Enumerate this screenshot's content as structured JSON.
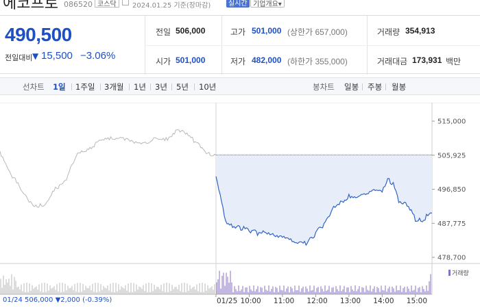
{
  "header": {
    "stock_name": "에코프로",
    "stock_code": "086520",
    "market": "코스닥",
    "date": "2024.01.25 기준(장마감)",
    "realtime_label": "실시간",
    "company_label": "기업개요▾"
  },
  "summary": {
    "current_price": "490,500",
    "change_label": "전일대비",
    "change_arrow": "▼",
    "change_amount": "15,500",
    "change_percent": "−3.06%",
    "prev_close_label": "전일",
    "prev_close": "506,000",
    "open_label": "시가",
    "open": "501,000",
    "high_label": "고가",
    "high": "501,000",
    "upper_limit_text": "(상한가 657,000)",
    "low_label": "저가",
    "low": "482,000",
    "lower_limit_text": "(하한가 355,000)",
    "volume_label": "거래량",
    "volume": "354,913",
    "value_label": "거래대금",
    "value": "173,931",
    "value_unit": "백만"
  },
  "tabs": {
    "line_label": "선차트",
    "line_periods": [
      "1일",
      "1주일",
      "3개월",
      "1년",
      "3년",
      "5년",
      "10년"
    ],
    "active_period": "1일",
    "candle_label": "봉차트",
    "candle_periods": [
      "일봉",
      "주봉",
      "월봉"
    ]
  },
  "colors": {
    "down_blue": "#1d50c4",
    "today_line": "#2f63c6",
    "today_fill": "#e7edf9",
    "prev_line": "#b8b8b8",
    "volume": "#8a6fc4"
  },
  "chart_data": {
    "type": "line",
    "y_ticks": [
      "515,000",
      "505,925",
      "496,850",
      "487,775",
      "478,700"
    ],
    "ylim": [
      478700,
      515000
    ],
    "x_ticks": [
      "01/25",
      "10:00",
      "11:00",
      "12:00",
      "13:00",
      "14:00",
      "15:00"
    ],
    "prev_day_label": "01/24",
    "prev_day_close": 506000,
    "series": [
      {
        "name": "01/24",
        "x": [
          "09:00",
          "09:20",
          "09:40",
          "10:00",
          "10:20",
          "10:40",
          "11:00",
          "11:20",
          "11:40",
          "12:00",
          "12:20",
          "12:40",
          "13:00",
          "13:20",
          "13:40",
          "14:00",
          "14:20",
          "14:40",
          "15:00",
          "15:20",
          "15:30"
        ],
        "values": [
          507000,
          501000,
          496000,
          493000,
          492000,
          497000,
          500000,
          506000,
          508000,
          509500,
          510500,
          511000,
          509000,
          509500,
          510000,
          510000,
          513000,
          511000,
          509000,
          505500,
          506000
        ]
      },
      {
        "name": "01/25",
        "x": [
          "09:00",
          "09:05",
          "09:10",
          "09:20",
          "09:30",
          "09:45",
          "10:00",
          "10:15",
          "10:30",
          "10:45",
          "11:00",
          "11:15",
          "11:30",
          "11:45",
          "12:00",
          "12:15",
          "12:30",
          "12:45",
          "13:00",
          "13:15",
          "13:30",
          "13:45",
          "14:00",
          "14:10",
          "14:20",
          "14:30",
          "14:45",
          "15:00",
          "15:10",
          "15:20",
          "15:30"
        ],
        "values": [
          501000,
          496500,
          493000,
          487500,
          487000,
          486500,
          485800,
          485200,
          485000,
          484200,
          483800,
          483000,
          482200,
          482500,
          485000,
          487500,
          491500,
          493500,
          495000,
          495000,
          496000,
          497000,
          496800,
          499500,
          498000,
          494000,
          493000,
          489000,
          488500,
          489500,
          490500
        ]
      }
    ],
    "volume_legend": "거래량",
    "prev_info": {
      "arrow": "▼",
      "close": "506,000",
      "change": "2,000",
      "change_percent": "(-0.39%)"
    }
  }
}
